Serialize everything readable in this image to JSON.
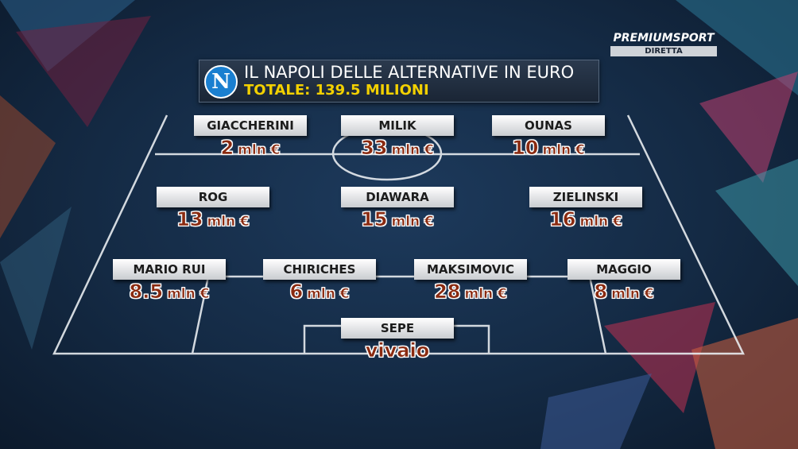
{
  "broadcaster": {
    "name": "PREMIUMSPORT",
    "status": "DIRETTA"
  },
  "header": {
    "badge": "N",
    "title": "IL NAPOLI DELLE ALTERNATIVE IN EURO",
    "subtitle": "TOTALE: 139.5 MILIONI"
  },
  "players": [
    {
      "name": "GIACCHERINI",
      "amount": "2",
      "unit": "mln €"
    },
    {
      "name": "MILIK",
      "amount": "33",
      "unit": "mln €"
    },
    {
      "name": "OUNAS",
      "amount": "10",
      "unit": "mln €"
    },
    {
      "name": "ROG",
      "amount": "13",
      "unit": "mln €"
    },
    {
      "name": "DIAWARA",
      "amount": "15",
      "unit": "mln €"
    },
    {
      "name": "ZIELINSKI",
      "amount": "16",
      "unit": "mln €"
    },
    {
      "name": "MARIO RUI",
      "amount": "8.5",
      "unit": "mln €"
    },
    {
      "name": "CHIRICHES",
      "amount": "6",
      "unit": "mln €"
    },
    {
      "name": "MAKSIMOVIC",
      "amount": "28",
      "unit": "mln €"
    },
    {
      "name": "MAGGIO",
      "amount": "8",
      "unit": "mln €"
    },
    {
      "name": "SEPE",
      "amount": "vivaio"
    }
  ]
}
